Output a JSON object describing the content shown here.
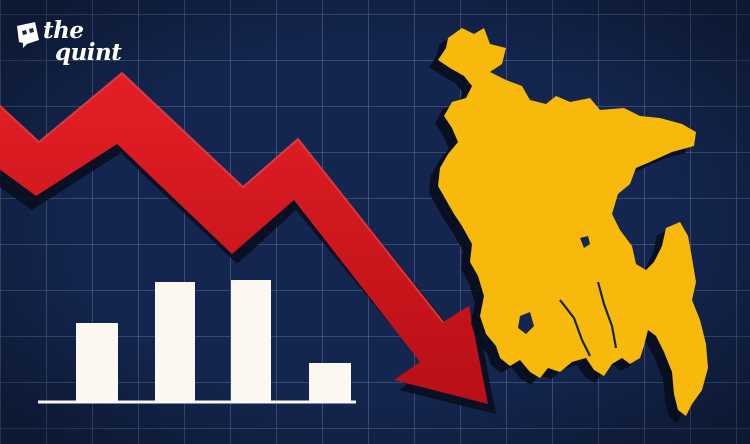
{
  "brand": {
    "line1": "the",
    "line2": "quint",
    "mark_icon": "speech-bubble-icon"
  },
  "scene": {
    "map_icon": "bangladesh-map-icon",
    "trend_icon": "downward-trend-arrow-icon",
    "bar_icon": "bar-chart-icon"
  },
  "colors": {
    "background": "#14264f",
    "grid": "#5d6f97",
    "arrow": "#d7141c",
    "map": "#f7b90c",
    "bars": "#fbf8f1"
  }
}
